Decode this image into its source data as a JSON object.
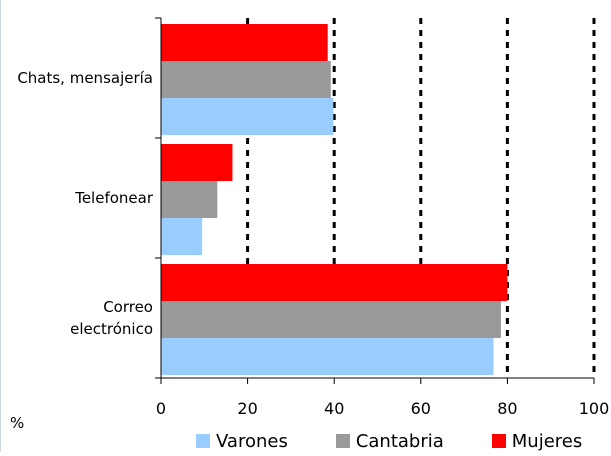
{
  "chart_data": {
    "type": "bar",
    "orientation": "horizontal",
    "categories": [
      "Chats, mensajería",
      "Telefonear",
      "Correo electrónico"
    ],
    "category_lines": [
      [
        "Chats, mensajería"
      ],
      [
        "Telefonear"
      ],
      [
        "Correo",
        "electrónico"
      ]
    ],
    "series": [
      {
        "name": "Mujeres",
        "color": "#ff0000",
        "values": [
          38.5,
          16.5,
          80.0
        ]
      },
      {
        "name": "Cantabria",
        "color": "#999999",
        "values": [
          39.2,
          13.0,
          78.5
        ]
      },
      {
        "name": "Varones",
        "color": "#99ccff",
        "values": [
          39.8,
          9.5,
          76.8
        ]
      }
    ],
    "xlim": [
      0,
      100
    ],
    "xticks": [
      0,
      20,
      40,
      60,
      80,
      100
    ],
    "xtick_labels": [
      "0",
      "20",
      "40",
      "60",
      "80",
      "100"
    ],
    "unit_label": "%",
    "grid": "vertical-dotted",
    "legend_position": "bottom",
    "legend": [
      {
        "name": "Varones",
        "color": "#99ccff"
      },
      {
        "name": "Cantabria",
        "color": "#999999"
      },
      {
        "name": "Mujeres",
        "color": "#ff0000"
      }
    ]
  }
}
